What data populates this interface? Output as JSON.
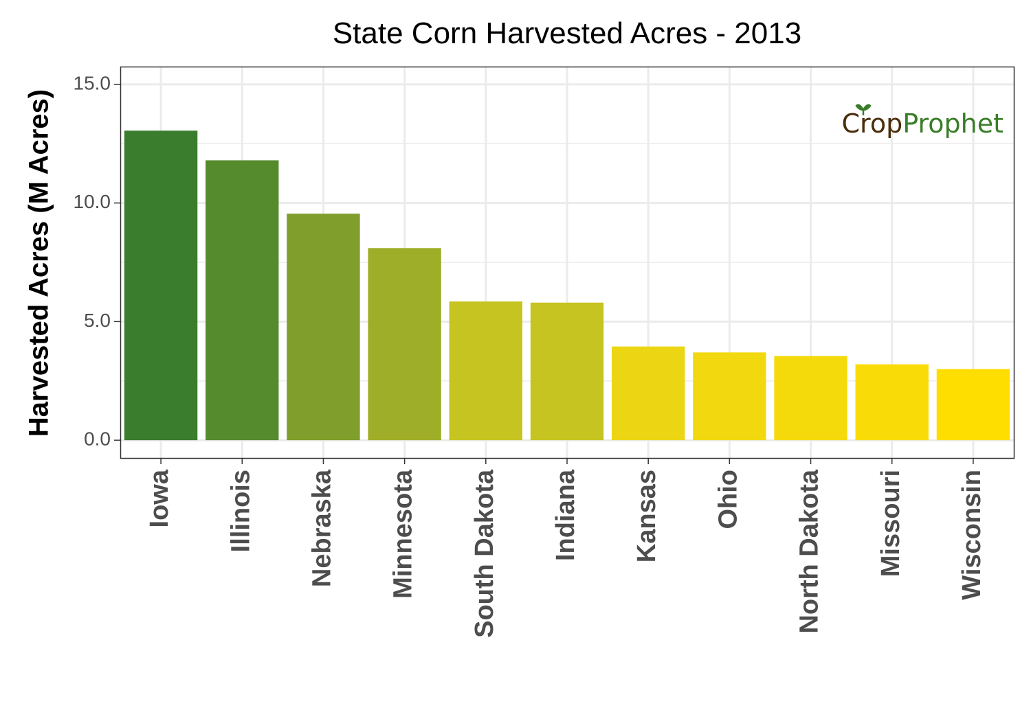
{
  "chart_data": {
    "type": "bar",
    "title": "State Corn Harvested Acres - 2013",
    "xlabel": "",
    "ylabel": "Harvested Acres (M Acres)",
    "ylim": [
      -0.75,
      15.75
    ],
    "yticks": [
      "0.0",
      "5.0",
      "10.0",
      "15.0"
    ],
    "ytick_values": [
      0,
      5,
      10,
      15
    ],
    "grid": true,
    "categories": [
      "Iowa",
      "Illinois",
      "Nebraska",
      "Minnesota",
      "South Dakota",
      "Indiana",
      "Kansas",
      "Ohio",
      "North Dakota",
      "Missouri",
      "Wisconsin"
    ],
    "values": [
      13.05,
      11.8,
      9.55,
      8.1,
      5.85,
      5.8,
      3.95,
      3.7,
      3.55,
      3.2,
      3.0
    ],
    "colors": [
      "#3a7d2c",
      "#558a2d",
      "#7f9e2c",
      "#9fae28",
      "#c6c420",
      "#c6c420",
      "#ecd512",
      "#f2d80e",
      "#f5da0b",
      "#f9dc07",
      "#fede00"
    ],
    "watermark": {
      "part1": "Crop",
      "part2": "Prophet",
      "color1": "#4a2e0c",
      "color2": "#3a7d29"
    }
  }
}
